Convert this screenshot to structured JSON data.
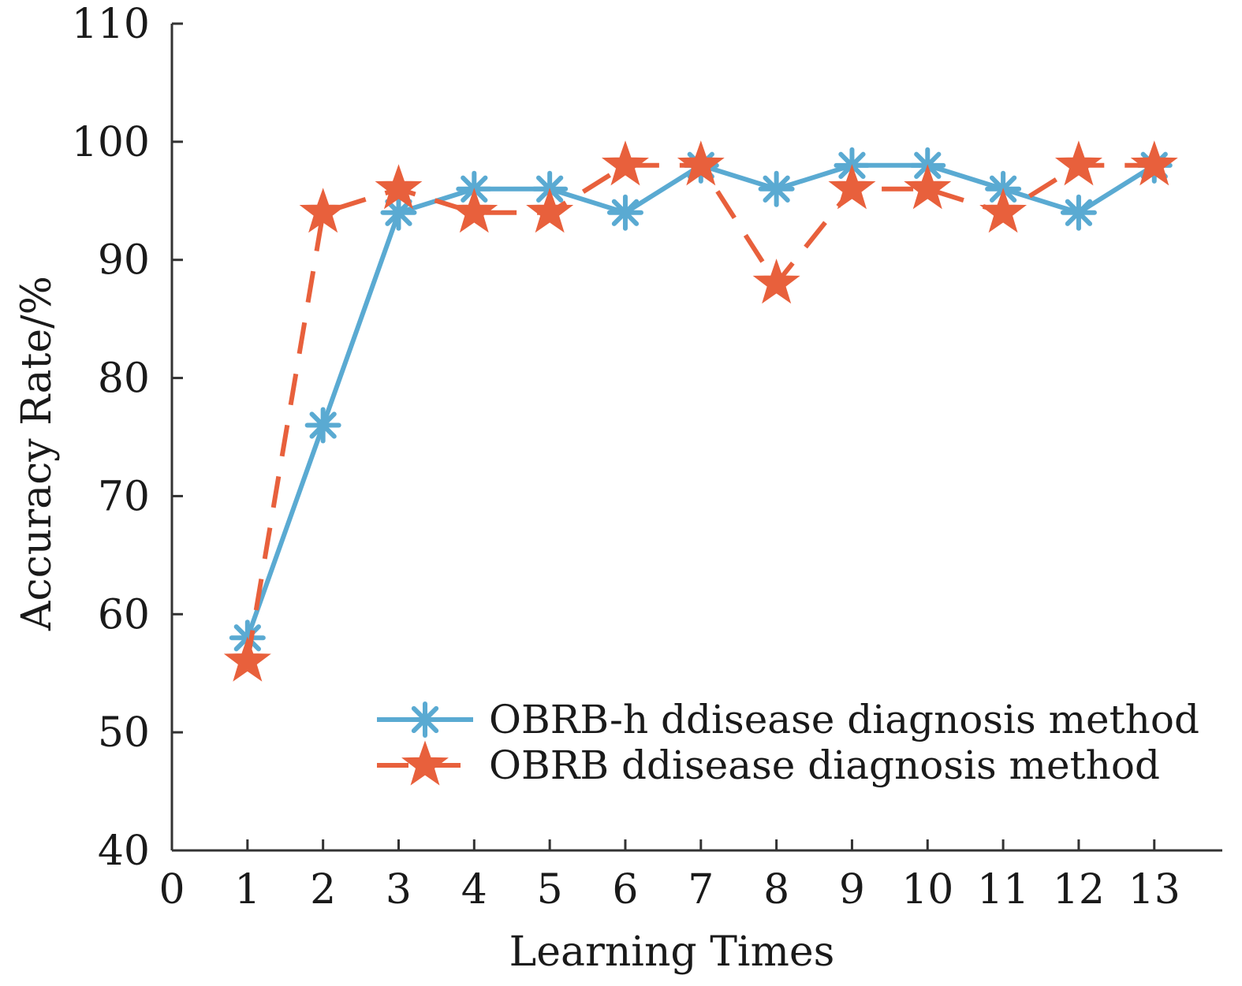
{
  "chart_data": {
    "type": "line",
    "xlabel": "Learning Times",
    "ylabel": "Accuracy Rate/%",
    "xlim": [
      0,
      13.9
    ],
    "ylim": [
      40,
      110
    ],
    "x_ticks": [
      "0",
      "1",
      "2",
      "3",
      "4",
      "5",
      "6",
      "7",
      "8",
      "9",
      "10",
      "11",
      "12",
      "13"
    ],
    "y_ticks": [
      "40",
      "50",
      "60",
      "70",
      "80",
      "90",
      "100",
      "110"
    ],
    "x": [
      1,
      2,
      3,
      4,
      5,
      6,
      7,
      8,
      9,
      10,
      11,
      12,
      13
    ],
    "legend_position": "bottom-right",
    "grid": false,
    "series": [
      {
        "name": "OBRB-h ddisease diagnosis method",
        "values": [
          58,
          76,
          94,
          96,
          96,
          94,
          98,
          96,
          98,
          98,
          96,
          94,
          98
        ],
        "color": "#5aaad2",
        "line_style": "solid",
        "marker": "asterisk"
      },
      {
        "name": "OBRB ddisease diagnosis method",
        "values": [
          56,
          94,
          96,
          94,
          94,
          98,
          98,
          88,
          96,
          96,
          94,
          98,
          98
        ],
        "color": "#e8603c",
        "line_style": "dashed",
        "marker": "star"
      }
    ]
  }
}
